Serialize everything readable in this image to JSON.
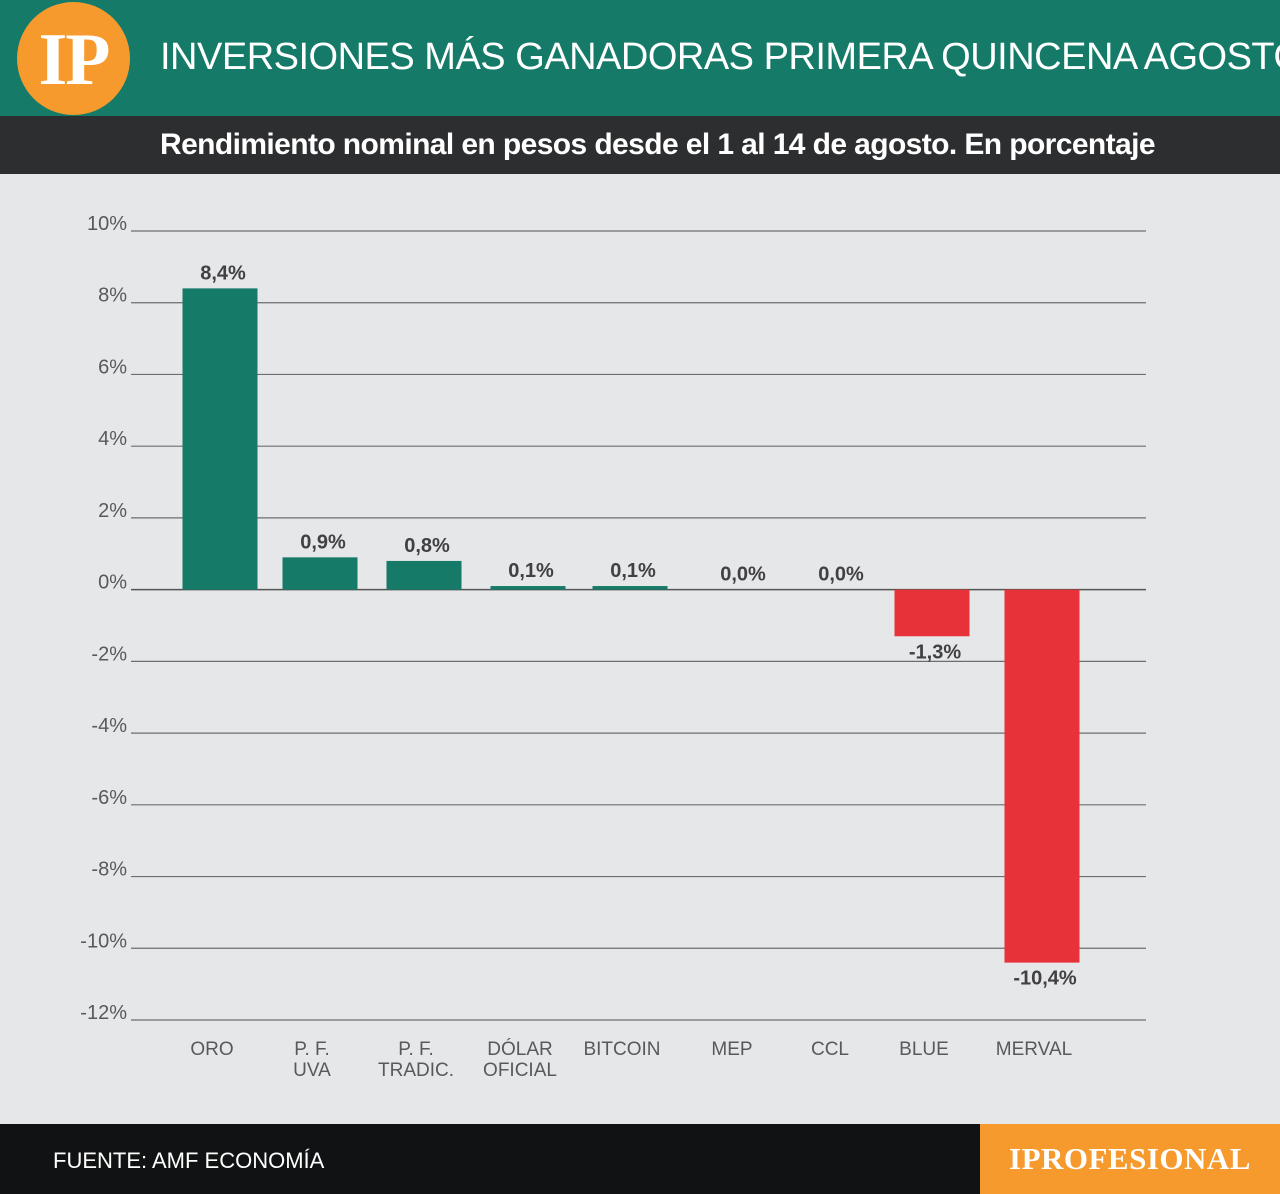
{
  "header": {
    "logo_text": "IP",
    "title": "INVERSIONES MÁS GANADORAS PRIMERA QUINCENA AGOSTO",
    "subtitle": "Rendimiento nominal en pesos desde el  1 al 14 de agosto. En porcentaje"
  },
  "footer": {
    "source": "FUENTE: AMF ECONOMÍA",
    "brand": "IPROFESIONAL"
  },
  "colors": {
    "header_green": "#157a68",
    "subheader_dark": "#2d2e30",
    "logo_orange": "#f79a2d",
    "positive_bar": "#157a68",
    "negative_bar": "#e8323a",
    "background": "#e6e7e8"
  },
  "chart_data": {
    "type": "bar",
    "categories": [
      [
        "ORO"
      ],
      [
        "P. F.",
        "UVA"
      ],
      [
        "P. F.",
        "TRADIC."
      ],
      [
        "DÓLAR",
        "OFICIAL"
      ],
      [
        "BITCOIN"
      ],
      [
        "MEP"
      ],
      [
        "CCL"
      ],
      [
        "BLUE"
      ],
      [
        "MERVAL"
      ]
    ],
    "values": [
      8.4,
      0.9,
      0.8,
      0.1,
      0.1,
      0.0,
      0.0,
      -1.3,
      -10.4
    ],
    "value_labels": [
      "8,4%",
      "0,9%",
      "0,8%",
      "0,1%",
      "0,1%",
      "0,0%",
      "0,0%",
      "-1,3%",
      "-10,4%"
    ],
    "y_ticks": [
      10,
      8,
      6,
      4,
      2,
      0,
      -2,
      -4,
      -6,
      -8,
      -10,
      -12
    ],
    "y_tick_labels": [
      "10%",
      "8%",
      "6%",
      "4%",
      "2%",
      "0%",
      "-2%",
      "-4%",
      "-6%",
      "-8%",
      "-10%",
      "-12%"
    ],
    "ylim": [
      -12,
      10
    ],
    "grid": true,
    "legend": "none"
  }
}
